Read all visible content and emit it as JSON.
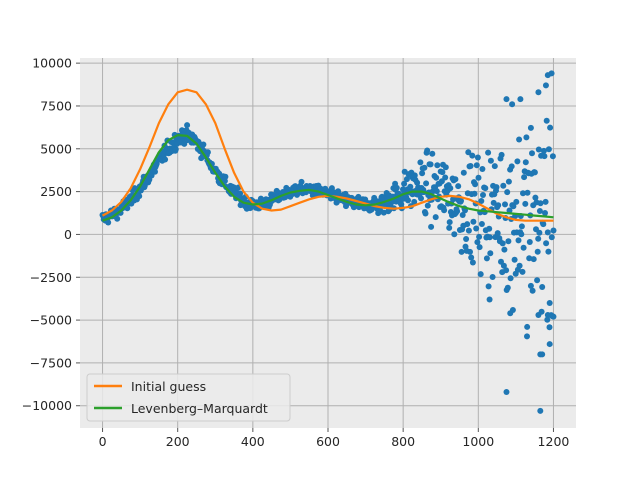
{
  "chart_data": {
    "type": "scatter",
    "title": "",
    "xlabel": "",
    "ylabel": "",
    "xlim": [
      -60,
      1260
    ],
    "ylim": [
      -11300,
      10300
    ],
    "grid": true,
    "legend_position": "bottom-left",
    "x_ticks": [
      0,
      200,
      400,
      600,
      800,
      1000,
      1200
    ],
    "y_ticks": [
      -10000,
      -7500,
      -5000,
      -2500,
      0,
      2500,
      5000,
      7500,
      10000
    ],
    "x_tick_labels": [
      "0",
      "200",
      "400",
      "600",
      "800",
      "1000",
      "1200"
    ],
    "y_tick_labels": [
      "−10000",
      "−7500",
      "−5000",
      "−2500",
      "0",
      "2500",
      "5000",
      "7500",
      "10000"
    ],
    "colors": {
      "background": "#ebebeb",
      "grid": "#b0b0b0",
      "scatter": "#1f77b4",
      "initial_guess": "#ff7f0e",
      "levenberg_marquardt": "#2ca02c"
    },
    "scatter_trend": {
      "x": [
        0,
        40,
        80,
        120,
        160,
        200,
        220,
        240,
        260,
        280,
        300,
        340,
        380,
        420,
        460,
        500,
        540,
        580,
        620,
        660,
        700,
        740,
        780,
        820,
        860,
        900,
        940,
        980,
        1000,
        1050,
        1100,
        1150,
        1200
      ],
      "y": [
        900,
        1300,
        2100,
        3300,
        4600,
        5600,
        5800,
        5600,
        5100,
        4400,
        3700,
        2600,
        1900,
        1700,
        2100,
        2500,
        2650,
        2500,
        2200,
        1900,
        1750,
        1800,
        2200,
        2700,
        2800,
        2500,
        2000,
        1600,
        1400,
        1200,
        1100,
        1050,
        1000
      ]
    },
    "scatter_spread": {
      "x": [
        0,
        200,
        400,
        600,
        700,
        760,
        800,
        850,
        900,
        950,
        1000,
        1050,
        1100,
        1150,
        1200
      ],
      "y": [
        300,
        400,
        300,
        300,
        350,
        600,
        900,
        1300,
        1700,
        2200,
        2800,
        3600,
        4500,
        5500,
        6500
      ]
    },
    "scatter_outliers": [
      {
        "x": 1075,
        "y": 7900
      },
      {
        "x": 1090,
        "y": 7600
      },
      {
        "x": 1112,
        "y": 7900
      },
      {
        "x": 1160,
        "y": 8300
      },
      {
        "x": 1180,
        "y": 8700
      },
      {
        "x": 1185,
        "y": 9300
      },
      {
        "x": 1195,
        "y": 9400
      },
      {
        "x": 1075,
        "y": -9200
      },
      {
        "x": 1165,
        "y": -10300
      },
      {
        "x": 1165,
        "y": -7000
      },
      {
        "x": 1170,
        "y": -7000
      },
      {
        "x": 1190,
        "y": -6400
      },
      {
        "x": 1190,
        "y": -4000
      },
      {
        "x": 1200,
        "y": -4800
      },
      {
        "x": 1085,
        "y": -4600
      },
      {
        "x": 1130,
        "y": -5400
      },
      {
        "x": 1160,
        "y": -4700
      },
      {
        "x": 1185,
        "y": -4700
      },
      {
        "x": 1030,
        "y": -3800
      },
      {
        "x": 1140,
        "y": -3000
      }
    ],
    "series": [
      {
        "name": "Initial guess",
        "x": [
          0,
          25,
          50,
          75,
          100,
          125,
          150,
          175,
          200,
          225,
          250,
          275,
          300,
          325,
          350,
          375,
          400,
          425,
          450,
          475,
          500,
          525,
          550,
          575,
          600,
          625,
          650,
          675,
          700,
          725,
          750,
          775,
          800,
          825,
          850,
          875,
          900,
          925,
          950,
          975,
          1000,
          1025,
          1050,
          1075,
          1100,
          1125,
          1150,
          1175,
          1200
        ],
        "y": [
          1100,
          1400,
          1900,
          2700,
          3800,
          5100,
          6500,
          7600,
          8300,
          8450,
          8300,
          7600,
          6500,
          5000,
          3600,
          2500,
          1850,
          1500,
          1400,
          1450,
          1650,
          1850,
          2050,
          2200,
          2250,
          2200,
          2100,
          1950,
          1800,
          1650,
          1550,
          1500,
          1550,
          1650,
          1850,
          2050,
          2200,
          2250,
          2200,
          2050,
          1800,
          1500,
          1200,
          1000,
          850,
          800,
          800,
          800,
          800
        ]
      },
      {
        "name": "Levenberg–Marquardt",
        "x": [
          0,
          25,
          50,
          75,
          100,
          125,
          150,
          175,
          200,
          225,
          250,
          275,
          300,
          325,
          350,
          375,
          400,
          425,
          450,
          475,
          500,
          525,
          550,
          575,
          600,
          625,
          650,
          675,
          700,
          725,
          750,
          775,
          800,
          825,
          850,
          875,
          900,
          925,
          950,
          975,
          1000,
          1025,
          1050,
          1075,
          1100,
          1125,
          1150,
          1175,
          1200
        ],
        "y": [
          800,
          1000,
          1400,
          2000,
          2800,
          3800,
          4800,
          5500,
          5800,
          5750,
          5300,
          4500,
          3600,
          2800,
          2200,
          1850,
          1750,
          1800,
          2000,
          2250,
          2450,
          2550,
          2600,
          2500,
          2300,
          2100,
          1900,
          1750,
          1700,
          1750,
          1900,
          2100,
          2350,
          2500,
          2500,
          2350,
          2100,
          1850,
          1650,
          1500,
          1400,
          1350,
          1300,
          1250,
          1200,
          1150,
          1100,
          1050,
          1000
        ]
      }
    ]
  }
}
